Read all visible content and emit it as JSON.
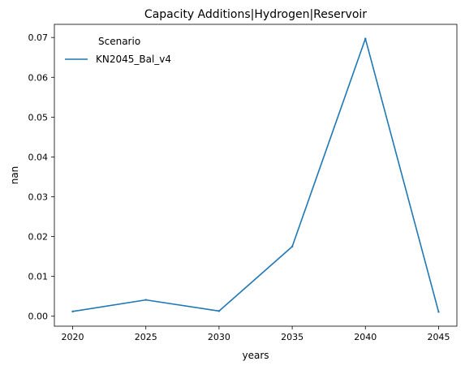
{
  "chart_data": {
    "type": "line",
    "title": "Capacity Additions|Hydrogen|Reservoir",
    "xlabel": "years",
    "ylabel": "nan",
    "x": [
      2020,
      2025,
      2030,
      2035,
      2040,
      2045
    ],
    "x_ticks": [
      "2020",
      "2025",
      "2030",
      "2035",
      "2040",
      "2045"
    ],
    "y_ticks": [
      "0.00",
      "0.01",
      "0.02",
      "0.03",
      "0.04",
      "0.05",
      "0.06",
      "0.07"
    ],
    "xlim": [
      2018.75,
      2046.25
    ],
    "ylim": [
      -0.0025,
      0.0733
    ],
    "grid": false,
    "legend": {
      "title": "Scenario",
      "placement": "top-left"
    },
    "series": [
      {
        "name": "KN2045_Bal_v4",
        "color": "#1f77b4",
        "values": [
          0.0012,
          0.0041,
          0.0013,
          0.0175,
          0.0697,
          0.0011
        ]
      }
    ]
  }
}
